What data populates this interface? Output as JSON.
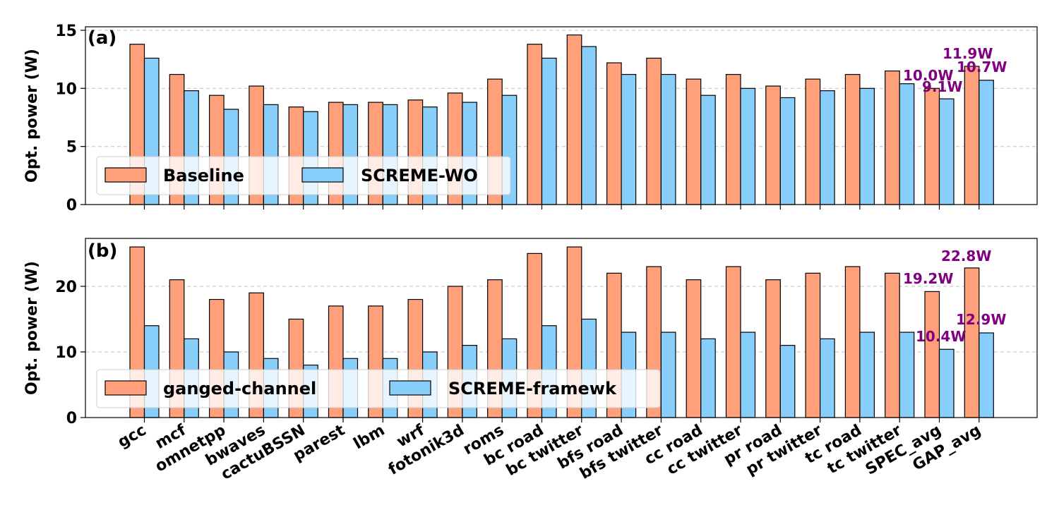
{
  "chart_data": [
    {
      "type": "bar",
      "panel_label": "(a)",
      "ylabel": "Opt. power (W)",
      "ylim": [
        0,
        15.3
      ],
      "yticks": [
        0,
        5,
        10,
        15
      ],
      "grid": "y-dashed",
      "legend_position": "bottom-left",
      "categories": [
        "gcc",
        "mcf",
        "omnetpp",
        "bwaves",
        "cactuBSSN",
        "parest",
        "lbm",
        "wrf",
        "fotonik3d",
        "roms",
        "bc road",
        "bc twitter",
        "bfs road",
        "bfs twitter",
        "cc road",
        "cc twitter",
        "pr road",
        "pr twitter",
        "tc road",
        "tc twitter",
        "SPEC_avg",
        "GAP_avg"
      ],
      "series": [
        {
          "name": "Baseline",
          "color": "#FFA07A",
          "values": [
            13.8,
            11.2,
            9.4,
            10.2,
            8.4,
            8.8,
            8.8,
            9.0,
            9.6,
            10.8,
            13.8,
            14.6,
            12.2,
            12.6,
            10.8,
            11.2,
            10.2,
            10.8,
            11.2,
            11.5,
            10.0,
            11.9
          ]
        },
        {
          "name": "SCREME-WO",
          "color": "#87CEFA",
          "values": [
            12.6,
            9.8,
            8.2,
            8.6,
            8.0,
            8.6,
            8.6,
            8.4,
            8.8,
            9.4,
            12.6,
            13.6,
            11.2,
            11.2,
            9.4,
            10.0,
            9.2,
            9.8,
            10.0,
            10.4,
            9.1,
            10.7
          ]
        }
      ],
      "annotations": [
        "11.9W",
        "10.0W",
        "10.7W",
        "9.1W"
      ]
    },
    {
      "type": "bar",
      "panel_label": "(b)",
      "ylabel": "Opt. power (W)",
      "ylim": [
        0,
        27.3
      ],
      "yticks": [
        0,
        10,
        20
      ],
      "grid": "y-dashed",
      "legend_position": "bottom-left",
      "categories": [
        "gcc",
        "mcf",
        "omnetpp",
        "bwaves",
        "cactuBSSN",
        "parest",
        "lbm",
        "wrf",
        "fotonik3d",
        "roms",
        "bc road",
        "bc twitter",
        "bfs road",
        "bfs twitter",
        "cc road",
        "cc twitter",
        "pr road",
        "pr twitter",
        "tc road",
        "tc twitter",
        "SPEC_avg",
        "GAP_avg"
      ],
      "series": [
        {
          "name": "ganged-channel",
          "color": "#FFA07A",
          "values": [
            26,
            21,
            18,
            19,
            15,
            17,
            17,
            18,
            20,
            21,
            25,
            26,
            22,
            23,
            21,
            23,
            21,
            22,
            23,
            22,
            19.2,
            22.8
          ]
        },
        {
          "name": "SCREME-framewk",
          "color": "#87CEFA",
          "values": [
            14,
            12,
            10,
            9,
            8,
            9,
            9,
            10,
            11,
            12,
            14,
            15,
            13,
            13,
            12,
            13,
            11,
            12,
            13,
            13,
            10.4,
            12.9
          ]
        }
      ],
      "annotations": [
        "22.8W",
        "19.2W",
        "12.9W",
        "10.4W"
      ]
    }
  ]
}
